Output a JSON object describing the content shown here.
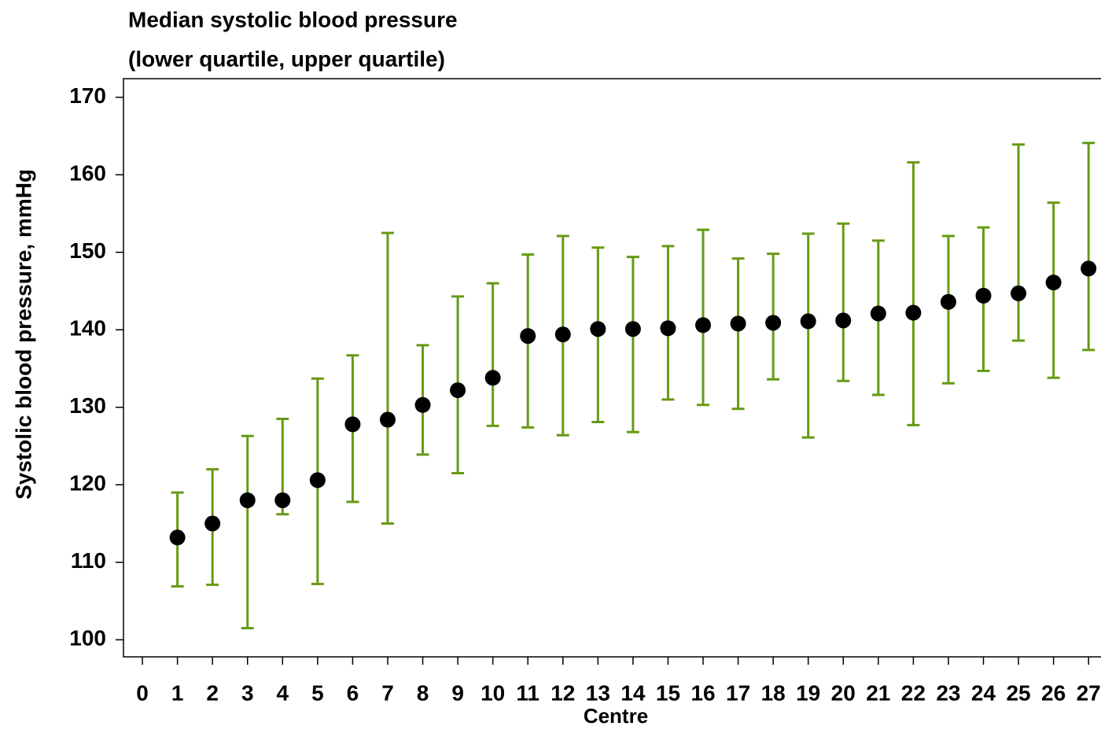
{
  "chart_data": {
    "type": "errorbar",
    "title": "Median systolic blood pressure",
    "subtitle": "(lower quartile, upper quartile)",
    "x_label": "Centre",
    "y_label": "Systolic blood pressure, mmHg",
    "x": [
      1,
      2,
      3,
      4,
      5,
      6,
      7,
      8,
      9,
      10,
      11,
      12,
      13,
      14,
      15,
      16,
      17,
      18,
      19,
      20,
      21,
      22,
      23,
      24,
      25,
      26,
      27
    ],
    "series": [
      {
        "name": "Median",
        "color": "#000000",
        "values": [
          113.2,
          115.0,
          118.0,
          118.0,
          120.6,
          127.8,
          128.4,
          130.3,
          132.2,
          133.8,
          139.2,
          139.4,
          140.1,
          140.1,
          140.2,
          140.6,
          140.8,
          140.9,
          141.1,
          141.2,
          142.1,
          142.2,
          143.6,
          144.4,
          144.7,
          146.1,
          147.9
        ]
      },
      {
        "name": "Lower quartile",
        "color": "#669a14",
        "values": [
          106.9,
          107.1,
          101.5,
          116.2,
          107.2,
          117.8,
          115.0,
          123.9,
          121.5,
          127.6,
          127.4,
          126.4,
          128.1,
          126.8,
          131.0,
          130.3,
          129.8,
          133.6,
          126.1,
          133.4,
          131.6,
          127.7,
          133.1,
          134.7,
          138.6,
          133.8,
          137.4
        ]
      },
      {
        "name": "Upper quartile",
        "color": "#669a14",
        "values": [
          119.0,
          122.0,
          126.3,
          128.5,
          133.7,
          136.7,
          152.5,
          138.0,
          144.3,
          146.0,
          149.7,
          152.1,
          150.6,
          149.4,
          150.8,
          152.9,
          149.2,
          149.8,
          152.4,
          153.7,
          151.5,
          161.6,
          152.1,
          153.2,
          163.9,
          156.4,
          164.1
        ]
      }
    ],
    "xlim": [
      -0.54,
      28.0
    ],
    "xticks": [
      0,
      1,
      2,
      3,
      4,
      5,
      6,
      7,
      8,
      9,
      10,
      11,
      12,
      13,
      14,
      15,
      16,
      17,
      18,
      19,
      20,
      21,
      22,
      23,
      24,
      25,
      26,
      27
    ],
    "ylim": [
      97.8,
      172.4
    ],
    "yticks": [
      100,
      110,
      120,
      130,
      140,
      150,
      160,
      170
    ]
  }
}
